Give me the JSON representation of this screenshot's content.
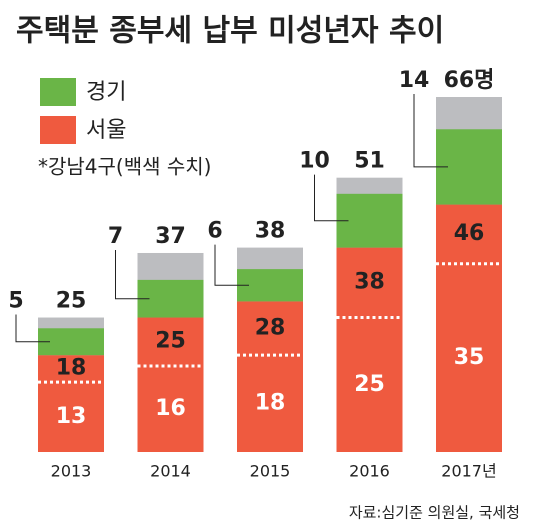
{
  "chart_data": {
    "type": "stacked-bar",
    "title": "주택분 종부세 납부 미성년자 추이",
    "categories": [
      "2013",
      "2014",
      "2015",
      "2016",
      "2017년"
    ],
    "series": [
      {
        "name": "서울",
        "color": "#ef5a3f",
        "values": [
          18,
          25,
          28,
          38,
          46
        ]
      },
      {
        "name": "경기",
        "color": "#6ab547",
        "values": [
          5,
          7,
          6,
          10,
          14
        ]
      },
      {
        "name": "*강남4구(백색 수치)",
        "color": "#ffffff",
        "values": [
          13,
          16,
          18,
          25,
          35
        ]
      }
    ],
    "totals": {
      "color": "#bcbdc0",
      "values": [
        25,
        37,
        38,
        51,
        66
      ],
      "value_labels": [
        "25",
        "37",
        "38",
        "51",
        "66명"
      ]
    },
    "source": "자료:심기준 의원실, 국세청"
  }
}
